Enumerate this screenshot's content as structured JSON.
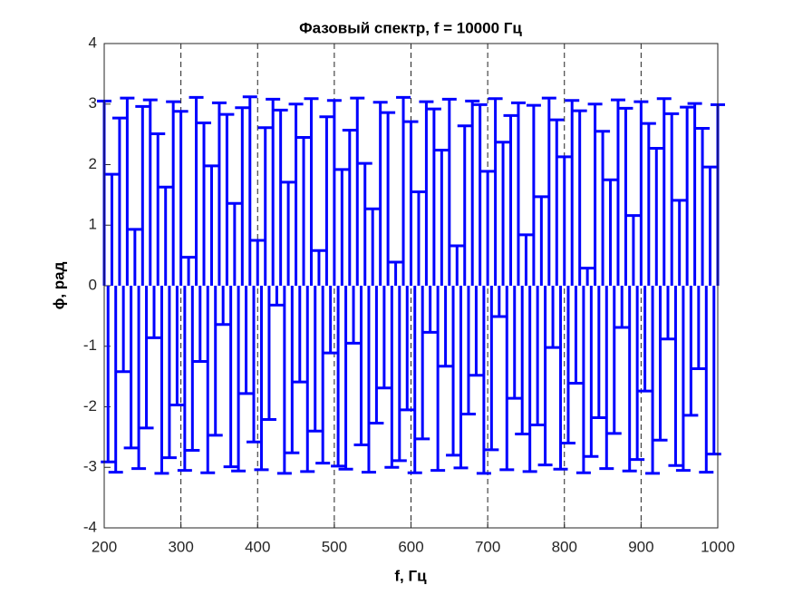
{
  "chart_data": {
    "type": "stem",
    "title": "Фазовый спектр, f = 10000 Гц",
    "xlabel": "f, Гц",
    "ylabel": "ϕ, рад",
    "color": "#0000ff",
    "xgrid": true,
    "xlim": [
      200,
      1000
    ],
    "ylim": [
      -4,
      4
    ],
    "xticks": [
      200,
      300,
      400,
      500,
      600,
      700,
      800,
      900,
      1000
    ],
    "yticks": [
      -4,
      -3,
      -2,
      -1,
      0,
      1,
      2,
      3,
      4
    ],
    "x": [
      200,
      205,
      210,
      215,
      220,
      225,
      230,
      235,
      240,
      245,
      250,
      255,
      260,
      265,
      270,
      275,
      280,
      285,
      290,
      295,
      300,
      305,
      310,
      315,
      320,
      325,
      330,
      335,
      340,
      345,
      350,
      355,
      360,
      365,
      370,
      375,
      380,
      385,
      390,
      395,
      400,
      405,
      410,
      415,
      420,
      425,
      430,
      435,
      440,
      445,
      450,
      455,
      460,
      465,
      470,
      475,
      480,
      485,
      490,
      495,
      500,
      505,
      510,
      515,
      520,
      525,
      530,
      535,
      540,
      545,
      550,
      555,
      560,
      565,
      570,
      575,
      580,
      585,
      590,
      595,
      600,
      605,
      610,
      615,
      620,
      625,
      630,
      635,
      640,
      645,
      650,
      655,
      660,
      665,
      670,
      675,
      680,
      685,
      690,
      695,
      700,
      705,
      710,
      715,
      720,
      725,
      730,
      735,
      740,
      745,
      750,
      755,
      760,
      765,
      770,
      775,
      780,
      785,
      790,
      795,
      800,
      805,
      810,
      815,
      820,
      825,
      830,
      835,
      840,
      845,
      850,
      855,
      860,
      865,
      870,
      875,
      880,
      885,
      890,
      895,
      900,
      905,
      910,
      915,
      920,
      925,
      930,
      935,
      940,
      945,
      950,
      955,
      960,
      965,
      970,
      975,
      980,
      985,
      990,
      995,
      1000
    ],
    "values": [
      3.05,
      -2.91,
      1.84,
      -3.08,
      2.77,
      -1.42,
      3.1,
      -2.68,
      0.93,
      -3.02,
      2.96,
      -2.35,
      3.07,
      -0.86,
      2.51,
      -3.1,
      1.63,
      -2.84,
      3.04,
      -1.97,
      2.88,
      -3.05,
      0.47,
      -2.72,
      3.11,
      -1.25,
      2.69,
      -3.09,
      1.98,
      -2.47,
      3.02,
      -0.64,
      2.83,
      -2.99,
      1.36,
      -3.06,
      2.94,
      -1.78,
      3.12,
      -2.58,
      0.75,
      -3.04,
      2.61,
      -2.21,
      3.08,
      -0.32,
      2.9,
      -3.1,
      1.71,
      -2.76,
      3.0,
      -1.59,
      2.45,
      -3.07,
      3.09,
      -2.4,
      0.58,
      -2.93,
      2.79,
      -1.11,
      3.06,
      -2.98,
      1.92,
      -3.03,
      2.57,
      -0.95,
      3.1,
      -2.63,
      2.02,
      -3.08,
      1.27,
      -2.27,
      3.03,
      -1.69,
      2.86,
      -3.0,
      0.39,
      -2.89,
      3.11,
      -2.05,
      2.71,
      -3.09,
      1.55,
      -2.53,
      3.04,
      -0.77,
      2.92,
      -3.05,
      2.24,
      -1.33,
      3.08,
      -2.8,
      0.66,
      -3.01,
      2.64,
      -2.12,
      3.05,
      -1.48,
      2.99,
      -3.1,
      1.89,
      -2.71,
      3.09,
      -0.51,
      2.37,
      -3.04,
      2.81,
      -1.86,
      3.02,
      -2.45,
      0.84,
      -3.07,
      2.98,
      -2.3,
      1.47,
      -2.96,
      3.1,
      -1.02,
      2.74,
      -3.03,
      2.13,
      -2.6,
      3.06,
      -1.61,
      2.89,
      -3.09,
      0.29,
      -2.82,
      3.0,
      -2.18,
      2.55,
      -3.02,
      1.75,
      -2.44,
      3.07,
      -0.69,
      2.93,
      -3.06,
      1.16,
      -2.87,
      3.04,
      -1.74,
      2.68,
      -3.1,
      2.27,
      -2.55,
      3.09,
      -0.88,
      2.84,
      -2.97,
      1.41,
      -3.05,
      2.95,
      -2.14,
      3.01,
      -1.37,
      2.6,
      -3.08,
      1.96,
      -2.78,
      2.99
    ]
  }
}
